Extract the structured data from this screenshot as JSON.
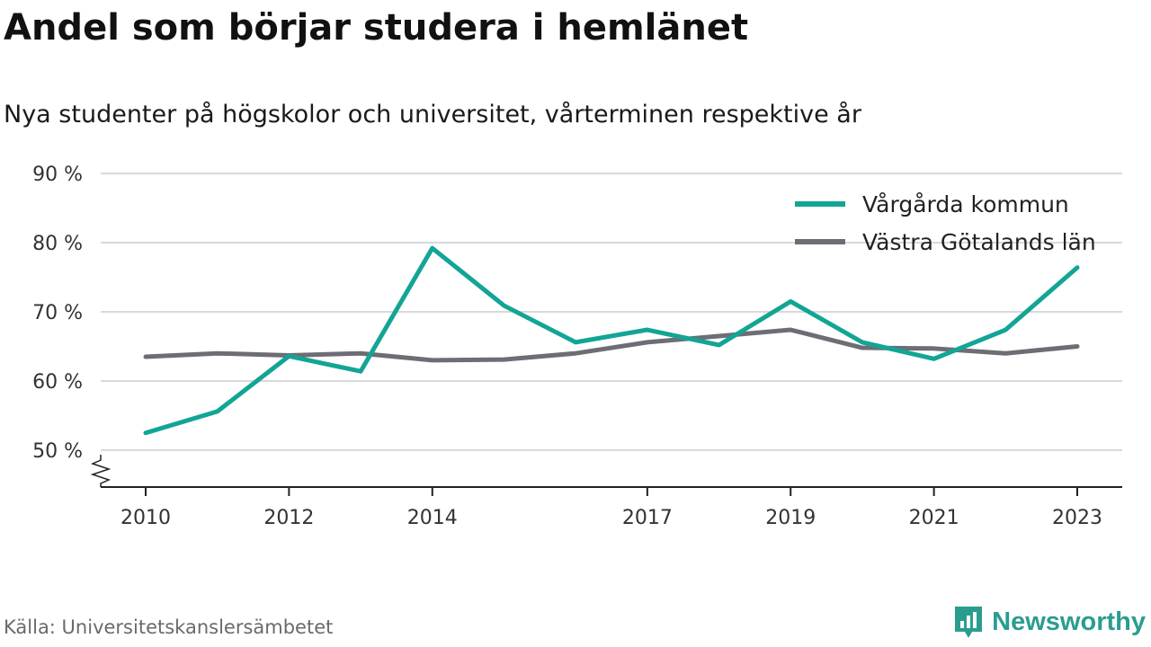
{
  "header": {
    "title": "Andel som börjar studera i hemlänet",
    "subtitle": "Nya studenter på högskolor och universitet, vårterminen respektive år"
  },
  "footer": {
    "source": "Källa: Universitetskanslersämbetet",
    "brand": "Newsworthy"
  },
  "colors": {
    "accent": "#12a595",
    "secondary": "#6e6d75",
    "grid": "#d9d9d9",
    "brand": "#2a9d8f"
  },
  "chart_data": {
    "type": "line",
    "title": "Andel som börjar studera i hemlänet",
    "subtitle": "Nya studenter på högskolor och universitet, vårterminen respektive år",
    "xlabel": "",
    "ylabel": "",
    "x": [
      2010,
      2011,
      2012,
      2013,
      2014,
      2015,
      2016,
      2017,
      2018,
      2019,
      2020,
      2021,
      2022,
      2023
    ],
    "xticks": [
      "2010",
      "2012",
      "2014",
      "2017",
      "2019",
      "2021",
      "2023"
    ],
    "yticks": [
      "50 %",
      "60 %",
      "70 %",
      "80 %",
      "90 %"
    ],
    "ylim": [
      44.5,
      90
    ],
    "grid": true,
    "legend": "top-right",
    "series": [
      {
        "name": "Vårgårda kommun",
        "color": "#12a595",
        "values": [
          52.5,
          55.6,
          63.6,
          61.4,
          79.2,
          70.9,
          65.6,
          67.4,
          65.2,
          71.5,
          65.6,
          63.2,
          67.4,
          76.4
        ]
      },
      {
        "name": "Västra Götalands län",
        "color": "#6e6d75",
        "values": [
          63.5,
          64.0,
          63.7,
          64.0,
          63.0,
          63.1,
          64.0,
          65.6,
          66.5,
          67.4,
          64.8,
          64.7,
          64.0,
          65.0
        ]
      }
    ]
  }
}
